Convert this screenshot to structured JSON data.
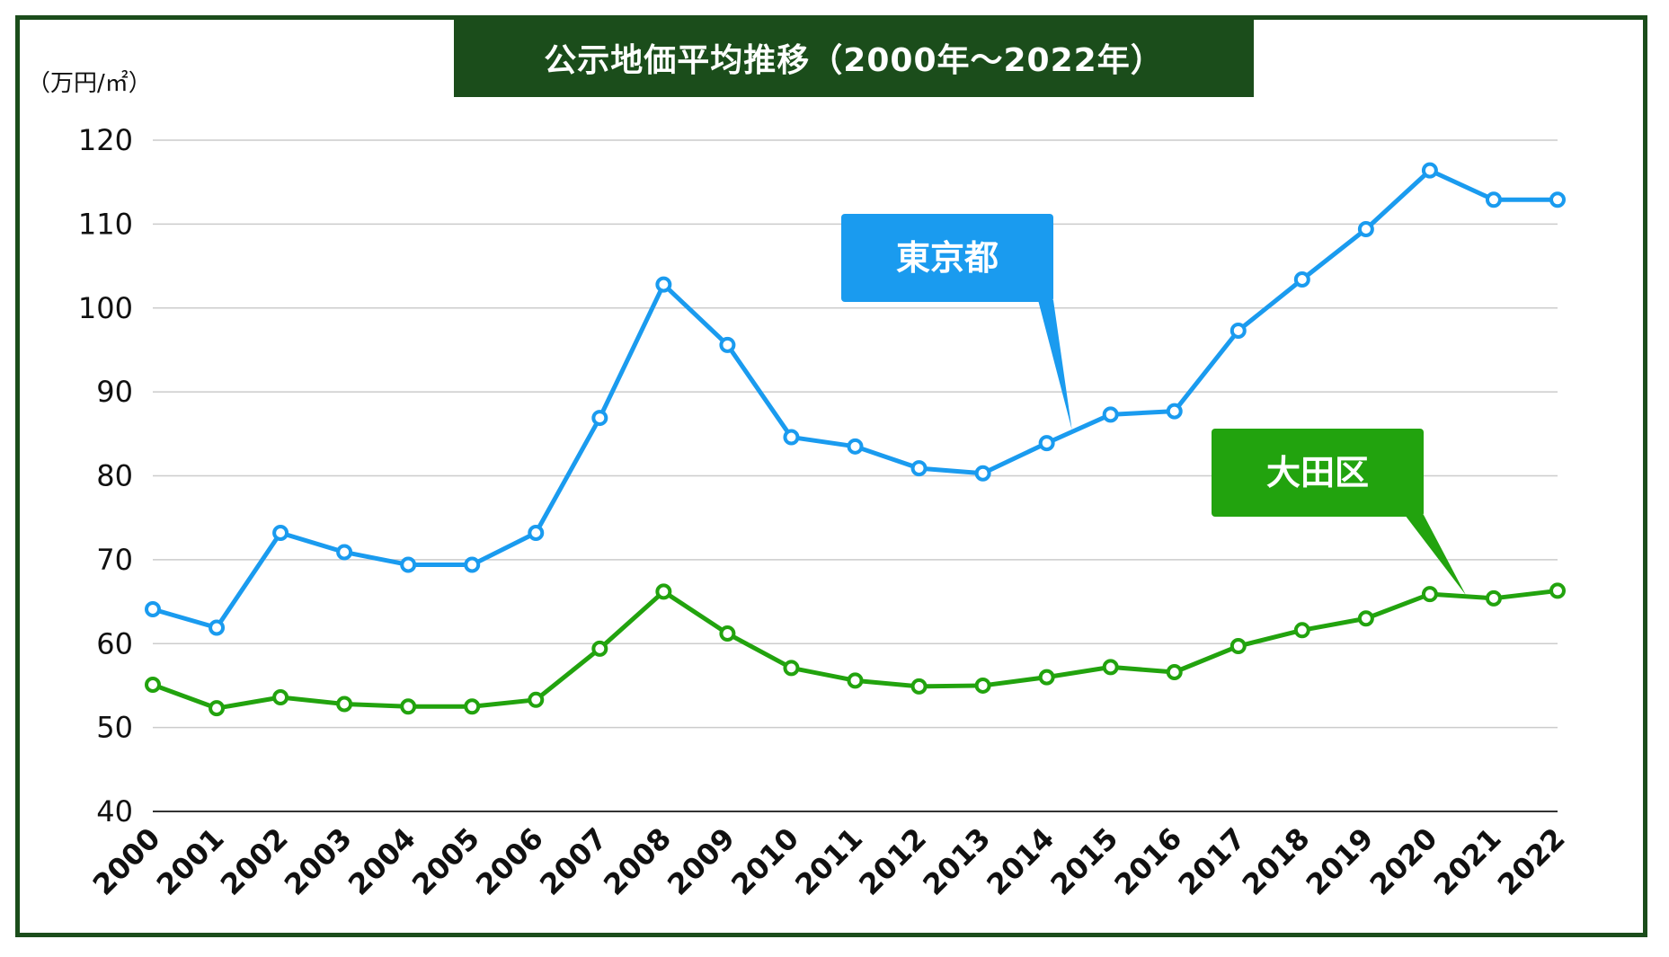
{
  "chart_data": {
    "type": "line",
    "title": "公示地価平均推移（2000年〜2022年）",
    "ylabel": "（万円/㎡）",
    "xlabel": "",
    "ylim": [
      40,
      120
    ],
    "yticks": [
      40,
      50,
      60,
      70,
      80,
      90,
      100,
      110,
      120
    ],
    "grid": true,
    "categories": [
      "2000",
      "2001",
      "2002",
      "2003",
      "2004",
      "2005",
      "2006",
      "2007",
      "2008",
      "2009",
      "2010",
      "2011",
      "2012",
      "2013",
      "2014",
      "2015",
      "2016",
      "2017",
      "2018",
      "2019",
      "2020",
      "2021",
      "2022"
    ],
    "series": [
      {
        "name": "東京都",
        "color": "#1a9bef",
        "values": [
          64.1,
          61.9,
          73.2,
          70.9,
          69.4,
          69.4,
          73.2,
          86.9,
          102.8,
          95.6,
          84.6,
          83.5,
          80.9,
          80.3,
          83.9,
          87.3,
          87.7,
          97.3,
          103.4,
          109.4,
          116.4,
          112.9,
          112.9
        ]
      },
      {
        "name": "大田区",
        "color": "#22a30e",
        "values": [
          55.1,
          52.3,
          53.6,
          52.8,
          52.5,
          52.5,
          53.3,
          59.4,
          66.2,
          61.2,
          57.1,
          55.6,
          54.9,
          55.0,
          56.0,
          57.2,
          56.6,
          59.7,
          61.6,
          63.0,
          65.9,
          65.4,
          66.3
        ]
      }
    ]
  }
}
